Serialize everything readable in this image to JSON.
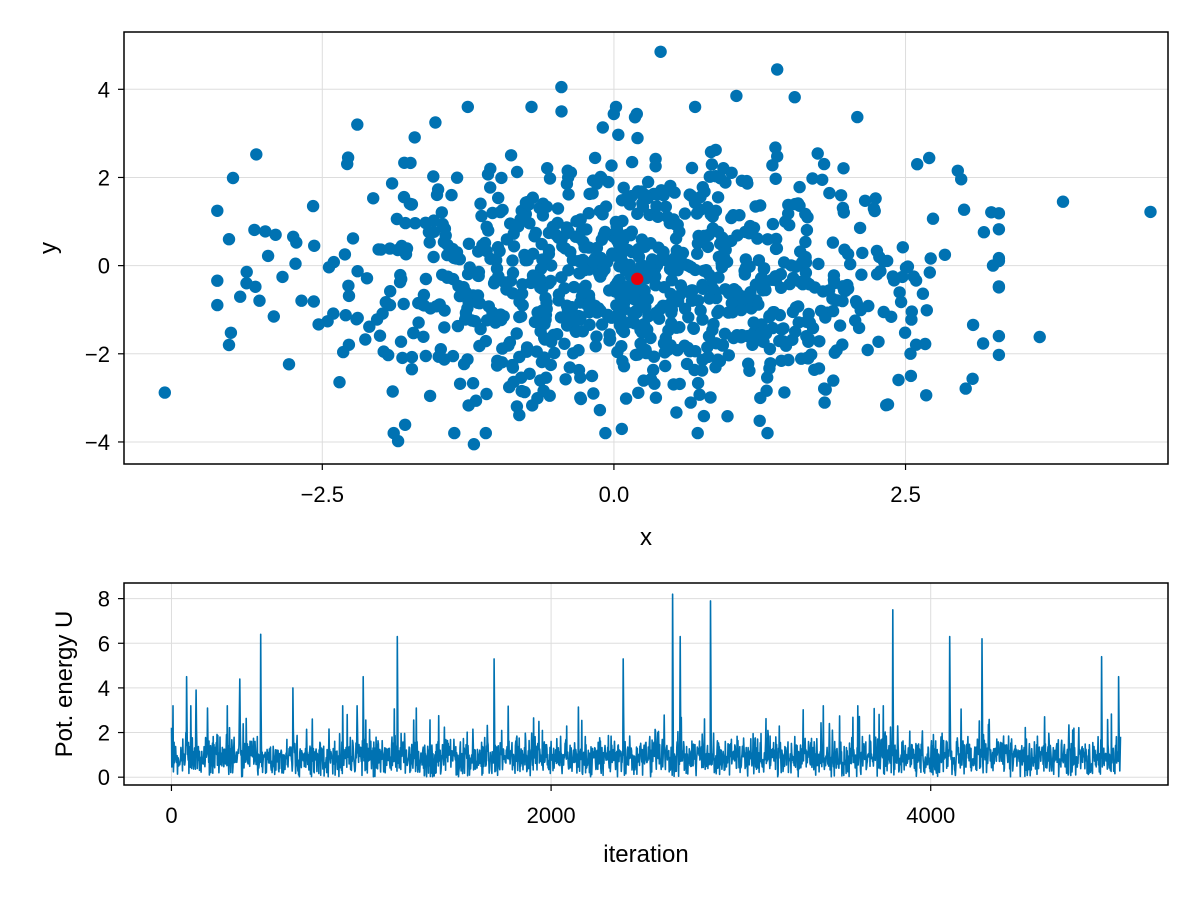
{
  "colors": {
    "series": "#0072b2",
    "highlight": "#e8000b",
    "grid": "#dddddd",
    "frame": "#000000",
    "background": "#ffffff"
  },
  "chart_data": [
    {
      "type": "scatter",
      "title": "",
      "xlabel": "x",
      "ylabel": "y",
      "xlim": [
        -4.2,
        4.75
      ],
      "ylim": [
        -4.5,
        5.3
      ],
      "xticks": [
        -2.5,
        0.0,
        2.5
      ],
      "xtick_labels": [
        "−2.5",
        "0.0",
        "2.5"
      ],
      "yticks": [
        -4,
        -2,
        0,
        2,
        4
      ],
      "ytick_labels": [
        "−4",
        "−2",
        "0",
        "2",
        "4"
      ],
      "grid": true,
      "legend": "none",
      "n_points_shown": 1000,
      "point_generation": "approximately bivariate normal, mean about (0.2, -0.3), sd about 1.4 in both x and y",
      "outlier_points": [
        {
          "x": -3.85,
          "y": -2.88
        },
        {
          "x": -3.3,
          "y": 0.6
        },
        {
          "x": -3.3,
          "y": -1.8
        },
        {
          "x": -3.15,
          "y": -0.4
        },
        {
          "x": -2.9,
          "y": 0.7
        },
        {
          "x": -2.2,
          "y": 3.2
        },
        {
          "x": 0.4,
          "y": 4.85
        },
        {
          "x": 1.4,
          "y": 4.45
        },
        {
          "x": 1.05,
          "y": 3.85
        },
        {
          "x": 1.55,
          "y": 3.82
        },
        {
          "x": 2.6,
          "y": 2.3
        },
        {
          "x": 3.25,
          "y": 0.0
        },
        {
          "x": 3.65,
          "y": -1.62
        },
        {
          "x": 3.85,
          "y": 1.45
        },
        {
          "x": 4.6,
          "y": 1.22
        },
        {
          "x": -1.2,
          "y": -4.05
        },
        {
          "x": -1.85,
          "y": -3.98
        },
        {
          "x": 2.35,
          "y": -3.15
        },
        {
          "x": 1.25,
          "y": -3.52
        },
        {
          "x": -0.45,
          "y": 4.05
        }
      ],
      "highlight_point": {
        "x": 0.2,
        "y": -0.3
      }
    },
    {
      "type": "line",
      "title": "",
      "xlabel": "iteration",
      "ylabel": "Pot. energy U",
      "xlim": [
        -250,
        5250
      ],
      "ylim": [
        -0.35,
        8.7
      ],
      "xticks": [
        0,
        2000,
        4000
      ],
      "xtick_labels": [
        "0",
        "2000",
        "4000"
      ],
      "yticks": [
        0,
        2,
        4,
        6,
        8
      ],
      "ytick_labels": [
        "0",
        "2",
        "4",
        "6",
        "8"
      ],
      "grid": true,
      "legend": "none",
      "n_iterations": 5000,
      "baseline_range": [
        0.0,
        2.0
      ],
      "peaks": [
        {
          "x": 80,
          "y": 4.5
        },
        {
          "x": 130,
          "y": 3.9
        },
        {
          "x": 190,
          "y": 3.1
        },
        {
          "x": 360,
          "y": 4.4
        },
        {
          "x": 470,
          "y": 6.4
        },
        {
          "x": 640,
          "y": 4.0
        },
        {
          "x": 1010,
          "y": 4.5
        },
        {
          "x": 1190,
          "y": 6.3
        },
        {
          "x": 1700,
          "y": 5.3
        },
        {
          "x": 2380,
          "y": 5.3
        },
        {
          "x": 2640,
          "y": 8.2
        },
        {
          "x": 2680,
          "y": 6.3
        },
        {
          "x": 2840,
          "y": 7.9
        },
        {
          "x": 3800,
          "y": 7.5
        },
        {
          "x": 4100,
          "y": 6.3
        },
        {
          "x": 4270,
          "y": 6.2
        },
        {
          "x": 4900,
          "y": 5.4
        },
        {
          "x": 4990,
          "y": 4.5
        }
      ]
    }
  ]
}
